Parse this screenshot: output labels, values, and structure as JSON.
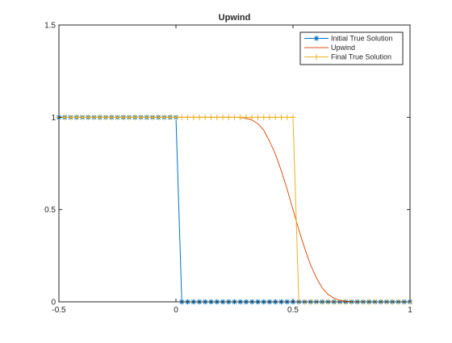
{
  "chart_data": {
    "type": "line",
    "title": "Upwind",
    "xlabel": "",
    "ylabel": "",
    "xlim": [
      -0.5,
      1
    ],
    "ylim": [
      0,
      1.5
    ],
    "xticks": [
      "-0.5",
      "0",
      "0.5",
      "1"
    ],
    "yticks": [
      "0",
      "0.5",
      "1",
      "1.5"
    ],
    "grid": false,
    "legend_position": "top-right",
    "series": [
      {
        "name": "Initial True Solution",
        "color": "#0072BD",
        "marker": "asterisk",
        "x": [
          -0.5,
          -0.475,
          -0.45,
          -0.425,
          -0.4,
          -0.375,
          -0.35,
          -0.325,
          -0.3,
          -0.275,
          -0.25,
          -0.225,
          -0.2,
          -0.175,
          -0.15,
          -0.125,
          -0.1,
          -0.075,
          -0.05,
          -0.025,
          0,
          0.025,
          0.05,
          0.075,
          0.1,
          0.125,
          0.15,
          0.175,
          0.2,
          0.225,
          0.25,
          0.275,
          0.3,
          0.325,
          0.35,
          0.375,
          0.4,
          0.425,
          0.45,
          0.475,
          0.5,
          0.525,
          0.55,
          0.575,
          0.6,
          0.625,
          0.65,
          0.675,
          0.7,
          0.725,
          0.75,
          0.775,
          0.8,
          0.825,
          0.85,
          0.875,
          0.9,
          0.925,
          0.95,
          0.975,
          1
        ],
        "y": [
          1,
          1,
          1,
          1,
          1,
          1,
          1,
          1,
          1,
          1,
          1,
          1,
          1,
          1,
          1,
          1,
          1,
          1,
          1,
          1,
          1,
          0,
          0,
          0,
          0,
          0,
          0,
          0,
          0,
          0,
          0,
          0,
          0,
          0,
          0,
          0,
          0,
          0,
          0,
          0,
          0,
          0,
          0,
          0,
          0,
          0,
          0,
          0,
          0,
          0,
          0,
          0,
          0,
          0,
          0,
          0,
          0,
          0,
          0,
          0,
          0
        ]
      },
      {
        "name": "Upwind",
        "color": "#D95319",
        "marker": "none",
        "x": [
          -0.5,
          -0.45,
          -0.4,
          -0.35,
          -0.3,
          -0.25,
          -0.2,
          -0.15,
          -0.1,
          -0.05,
          0,
          0.05,
          0.1,
          0.15,
          0.2,
          0.25,
          0.275,
          0.3,
          0.325,
          0.35,
          0.375,
          0.4,
          0.425,
          0.45,
          0.475,
          0.5,
          0.525,
          0.55,
          0.575,
          0.6,
          0.625,
          0.65,
          0.675,
          0.7,
          0.725,
          0.75,
          0.8,
          0.85,
          0.9,
          0.95,
          1
        ],
        "y": [
          1,
          1,
          1,
          1,
          1,
          1,
          1,
          1,
          1,
          1,
          1,
          1,
          1,
          1,
          1,
          1,
          0.998,
          0.995,
          0.985,
          0.965,
          0.93,
          0.87,
          0.8,
          0.71,
          0.61,
          0.5,
          0.39,
          0.29,
          0.2,
          0.13,
          0.075,
          0.04,
          0.02,
          0.008,
          0.003,
          0.001,
          0,
          0,
          0,
          0,
          0
        ]
      },
      {
        "name": "Final True Solution",
        "color": "#EDB120",
        "marker": "plus",
        "x": [
          -0.5,
          -0.475,
          -0.45,
          -0.425,
          -0.4,
          -0.375,
          -0.35,
          -0.325,
          -0.3,
          -0.275,
          -0.25,
          -0.225,
          -0.2,
          -0.175,
          -0.15,
          -0.125,
          -0.1,
          -0.075,
          -0.05,
          -0.025,
          0,
          0.025,
          0.05,
          0.075,
          0.1,
          0.125,
          0.15,
          0.175,
          0.2,
          0.225,
          0.25,
          0.275,
          0.3,
          0.325,
          0.35,
          0.375,
          0.4,
          0.425,
          0.45,
          0.475,
          0.5,
          0.525,
          0.55,
          0.575,
          0.6,
          0.625,
          0.65,
          0.675,
          0.7,
          0.725,
          0.75,
          0.775,
          0.8,
          0.825,
          0.85,
          0.875,
          0.9,
          0.925,
          0.95,
          0.975,
          1
        ],
        "y": [
          1,
          1,
          1,
          1,
          1,
          1,
          1,
          1,
          1,
          1,
          1,
          1,
          1,
          1,
          1,
          1,
          1,
          1,
          1,
          1,
          1,
          1,
          1,
          1,
          1,
          1,
          1,
          1,
          1,
          1,
          1,
          1,
          1,
          1,
          1,
          1,
          1,
          1,
          1,
          1,
          1,
          0,
          0,
          0,
          0,
          0,
          0,
          0,
          0,
          0,
          0,
          0,
          0,
          0,
          0,
          0,
          0,
          0,
          0,
          0,
          0
        ]
      }
    ]
  }
}
